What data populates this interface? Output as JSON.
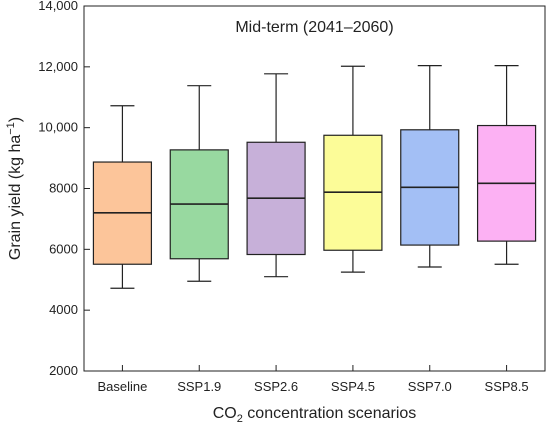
{
  "chart_data": {
    "type": "box",
    "title": "Mid-term (2041–2060)",
    "xlabel": {
      "prefix": "CO",
      "sub": "2",
      "suffix": " concentration scenarios"
    },
    "ylabel": {
      "main": "Grain yield (kg ha",
      "sup": "−1",
      "close": ")"
    },
    "ylim": [
      2000,
      14000
    ],
    "yticks": [
      2000,
      4000,
      6000,
      8000,
      10000,
      12000,
      14000
    ],
    "ytick_labels": [
      "2000",
      "4000",
      "6000",
      "8000",
      "10,000",
      "12,000",
      "14,000"
    ],
    "grid": false,
    "categories": [
      "Baseline",
      "SSP1.9",
      "SSP2.6",
      "SSP4.5",
      "SSP7.0",
      "SSP8.5"
    ],
    "series": [
      {
        "category": "Baseline",
        "min": 4720,
        "q1": 5510,
        "median": 7200,
        "q3": 8870,
        "max": 10720,
        "color": "#fcc59a"
      },
      {
        "category": "SSP1.9",
        "min": 4950,
        "q1": 5690,
        "median": 7490,
        "q3": 9270,
        "max": 11380,
        "color": "#98d9a0"
      },
      {
        "category": "SSP2.6",
        "min": 5100,
        "q1": 5830,
        "median": 7680,
        "q3": 9520,
        "max": 11770,
        "color": "#c7b0d9"
      },
      {
        "category": "SSP4.5",
        "min": 5250,
        "q1": 5970,
        "median": 7880,
        "q3": 9750,
        "max": 12020,
        "color": "#fcfc98"
      },
      {
        "category": "SSP7.0",
        "min": 5420,
        "q1": 6140,
        "median": 8040,
        "q3": 9930,
        "max": 12040,
        "color": "#a3bff5"
      },
      {
        "category": "SSP8.5",
        "min": 5510,
        "q1": 6270,
        "median": 8170,
        "q3": 10070,
        "max": 12040,
        "color": "#fcb1f3"
      }
    ]
  }
}
